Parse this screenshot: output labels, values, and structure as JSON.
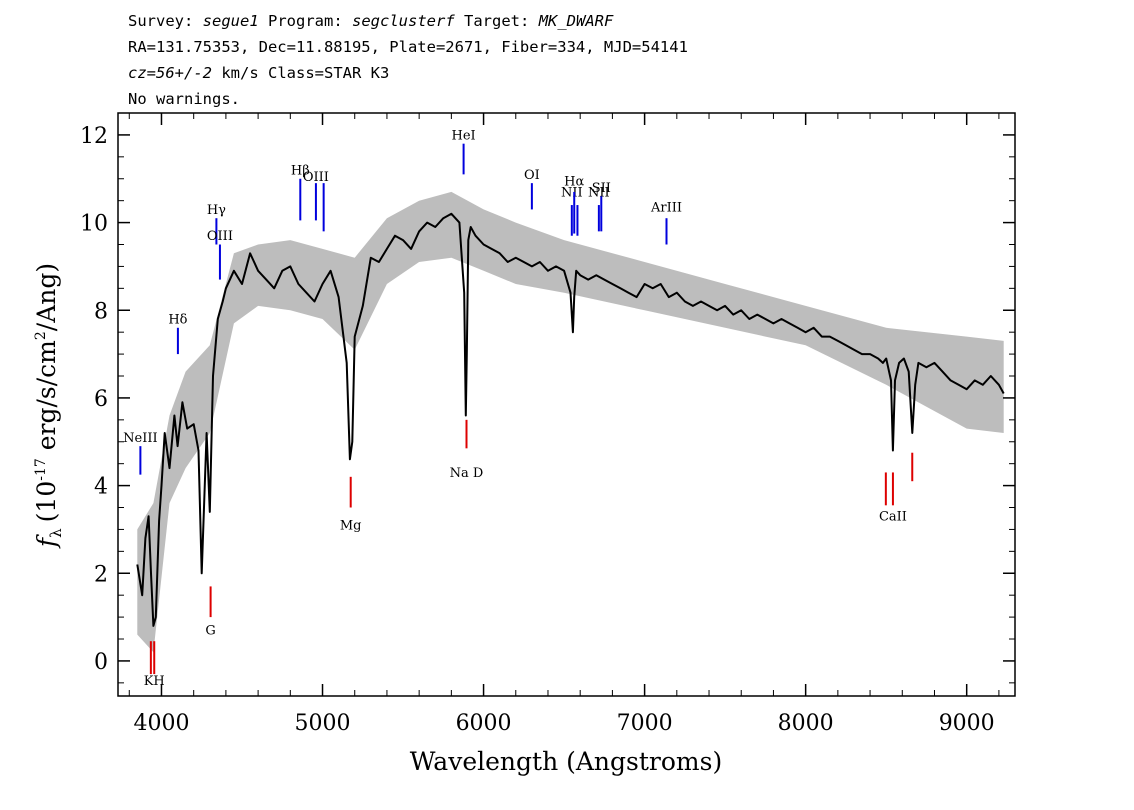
{
  "header": {
    "survey_label": "Survey:",
    "survey": "segue1",
    "program_label": "Program:",
    "program": "segclusterf",
    "target_label": "Target:",
    "target": "MK_DWARF",
    "line2": "RA=131.75353, Dec=11.88195, Plate=2671, Fiber=334, MJD=54141",
    "cz": "cz=56+/-2",
    "cz_unit": "km/s",
    "class_text": "Class=STAR K3",
    "warnings": "No warnings."
  },
  "colors": {
    "spectrum": "#000000",
    "noise": "#bdbdbd",
    "emission": "#0000dd",
    "absorption": "#dd0000",
    "sky": "#000000"
  },
  "chart_data": {
    "type": "line",
    "title": "",
    "xlabel": "Wavelength (Angstroms)",
    "ylabel": "f_λ (10^-17 erg/s/cm^2/Ang)",
    "ylabel_parts": {
      "f": "f",
      "sub": "λ",
      "pre": "(10",
      "exp1": "-17",
      "mid": " erg/s/cm",
      "exp2": "2",
      "post": "/Ang)"
    },
    "xlim": [
      3730,
      9300
    ],
    "ylim": [
      -0.8,
      12.5
    ],
    "xticks": [
      4000,
      5000,
      6000,
      7000,
      8000,
      9000
    ],
    "xtick_labels": [
      "4000",
      "5000",
      "6000",
      "7000",
      "8000",
      "9000"
    ],
    "yticks": [
      0,
      2,
      4,
      6,
      8,
      10,
      12
    ],
    "ytick_labels": [
      "0",
      "2",
      "4",
      "6",
      "8",
      "10",
      "12"
    ],
    "grid": false,
    "series": [
      {
        "role": "flux",
        "x": [
          3850,
          3880,
          3900,
          3920,
          3935,
          3950,
          3965,
          3985,
          4000,
          4020,
          4050,
          4080,
          4100,
          4130,
          4160,
          4200,
          4230,
          4250,
          4280,
          4300,
          4320,
          4350,
          4380,
          4400,
          4450,
          4500,
          4550,
          4600,
          4650,
          4700,
          4750,
          4800,
          4850,
          4900,
          4950,
          5000,
          5050,
          5100,
          5150,
          5170,
          5185,
          5200,
          5250,
          5300,
          5350,
          5400,
          5450,
          5500,
          5550,
          5600,
          5650,
          5700,
          5750,
          5800,
          5850,
          5880,
          5890,
          5896,
          5905,
          5920,
          5950,
          6000,
          6050,
          6100,
          6150,
          6200,
          6250,
          6300,
          6350,
          6400,
          6450,
          6500,
          6540,
          6555,
          6563,
          6575,
          6600,
          6650,
          6700,
          6750,
          6800,
          6850,
          6900,
          6950,
          7000,
          7050,
          7100,
          7150,
          7200,
          7250,
          7300,
          7350,
          7400,
          7450,
          7500,
          7550,
          7600,
          7650,
          7700,
          7750,
          7800,
          7850,
          7900,
          7950,
          8000,
          8050,
          8100,
          8150,
          8200,
          8250,
          8300,
          8350,
          8400,
          8450,
          8480,
          8500,
          8530,
          8542,
          8555,
          8580,
          8610,
          8640,
          8662,
          8680,
          8700,
          8750,
          8800,
          8850,
          8900,
          8950,
          9000,
          9050,
          9100,
          9150,
          9200,
          9230
        ],
        "y": [
          2.2,
          1.5,
          2.8,
          3.3,
          2.0,
          0.8,
          1.0,
          3.2,
          4.0,
          5.2,
          4.4,
          5.6,
          4.9,
          5.9,
          5.3,
          5.4,
          4.8,
          2.0,
          5.2,
          3.4,
          6.5,
          7.8,
          8.2,
          8.5,
          8.9,
          8.6,
          9.3,
          8.9,
          8.7,
          8.5,
          8.9,
          9.0,
          8.6,
          8.4,
          8.2,
          8.6,
          8.9,
          8.3,
          6.8,
          4.6,
          5.0,
          7.4,
          8.1,
          9.2,
          9.1,
          9.4,
          9.7,
          9.6,
          9.4,
          9.8,
          10.0,
          9.9,
          10.1,
          10.2,
          10.0,
          8.4,
          5.6,
          7.0,
          9.6,
          9.9,
          9.7,
          9.5,
          9.4,
          9.3,
          9.1,
          9.2,
          9.1,
          9.0,
          9.1,
          8.9,
          9.0,
          8.9,
          8.4,
          7.5,
          8.3,
          8.9,
          8.8,
          8.7,
          8.8,
          8.7,
          8.6,
          8.5,
          8.4,
          8.3,
          8.6,
          8.5,
          8.6,
          8.3,
          8.4,
          8.2,
          8.1,
          8.2,
          8.1,
          8.0,
          8.1,
          7.9,
          8.0,
          7.8,
          7.9,
          7.8,
          7.7,
          7.8,
          7.7,
          7.6,
          7.5,
          7.6,
          7.4,
          7.4,
          7.3,
          7.2,
          7.1,
          7.0,
          7.0,
          6.9,
          6.8,
          6.9,
          6.4,
          4.8,
          6.4,
          6.8,
          6.9,
          6.6,
          5.2,
          6.3,
          6.8,
          6.7,
          6.8,
          6.6,
          6.4,
          6.3,
          6.2,
          6.4,
          6.3,
          6.5,
          6.3,
          6.1
        ]
      },
      {
        "role": "noise_upper",
        "x": [
          3850,
          3950,
          4050,
          4150,
          4300,
          4450,
          4600,
          4800,
          5000,
          5200,
          5400,
          5600,
          5800,
          6000,
          6200,
          6500,
          7000,
          7500,
          8000,
          8500,
          9000,
          9230
        ],
        "y": [
          3.0,
          3.6,
          5.6,
          6.6,
          7.2,
          9.3,
          9.5,
          9.6,
          9.4,
          9.2,
          10.1,
          10.5,
          10.7,
          10.3,
          10.0,
          9.6,
          9.1,
          8.6,
          8.1,
          7.6,
          7.4,
          7.3
        ]
      },
      {
        "role": "noise_lower",
        "x": [
          3850,
          3950,
          4050,
          4150,
          4300,
          4450,
          4600,
          4800,
          5000,
          5200,
          5400,
          5600,
          5800,
          6000,
          6200,
          6500,
          7000,
          7500,
          8000,
          8500,
          9000,
          9230
        ],
        "y": [
          0.6,
          0.2,
          3.6,
          4.4,
          5.2,
          7.7,
          8.1,
          8.0,
          7.8,
          7.1,
          8.6,
          9.1,
          9.2,
          8.9,
          8.6,
          8.4,
          8.0,
          7.6,
          7.2,
          6.3,
          5.3,
          5.2
        ]
      }
    ],
    "line_markers": [
      {
        "name": "NeIII",
        "wave": 3869,
        "type": "emission",
        "y1": 4.25,
        "y2": 4.9,
        "label_y": 5.0
      },
      {
        "name": "Hδ",
        "wave": 4102,
        "type": "emission",
        "y1": 7.0,
        "y2": 7.6,
        "label_y": 7.7
      },
      {
        "name": "Hγ",
        "wave": 4341,
        "type": "emission",
        "y1": 9.5,
        "y2": 10.1,
        "label_y": 10.2
      },
      {
        "name": "OIII",
        "wave": 4363,
        "type": "emission",
        "y1": 8.7,
        "y2": 9.5,
        "label_y": 9.6
      },
      {
        "name": "Hβ",
        "wave": 4862,
        "type": "emission",
        "y1": 10.05,
        "y2": 11.0,
        "label_y": 11.1
      },
      {
        "name": "OIII",
        "wave": 4959,
        "type": "emission",
        "y1": 10.05,
        "y2": 10.9,
        "label_y": 10.95
      },
      {
        "name": "",
        "wave": 5007,
        "type": "emission",
        "y1": 9.8,
        "y2": 10.9,
        "label_y": 0
      },
      {
        "name": "HeI",
        "wave": 5876,
        "type": "emission",
        "y1": 11.1,
        "y2": 11.8,
        "label_y": 11.9
      },
      {
        "name": "OI",
        "wave": 6300,
        "type": "emission",
        "y1": 10.3,
        "y2": 10.9,
        "label_y": 11.0
      },
      {
        "name": "NII",
        "wave": 6548,
        "type": "emission",
        "y1": 9.7,
        "y2": 10.4,
        "label_y": 10.6
      },
      {
        "name": "Hα",
        "wave": 6563,
        "type": "emission",
        "y1": 9.75,
        "y2": 10.7,
        "label_y": 10.85
      },
      {
        "name": "",
        "wave": 6583,
        "type": "emission",
        "y1": 9.7,
        "y2": 10.4,
        "label_y": 0
      },
      {
        "name": "NII",
        "wave": 6716,
        "type": "emission",
        "y1": 9.8,
        "y2": 10.4,
        "label_y": 10.6
      },
      {
        "name": "SII",
        "wave": 6731,
        "type": "emission",
        "y1": 9.8,
        "y2": 10.6,
        "label_y": 10.7
      },
      {
        "name": "ArIII",
        "wave": 7136,
        "type": "emission",
        "y1": 9.5,
        "y2": 10.1,
        "label_y": 10.25
      },
      {
        "name": "",
        "wave": 3934,
        "type": "absorption",
        "y1": -0.3,
        "y2": 0.45,
        "label_y": 0
      },
      {
        "name": "KH",
        "wave": 3955,
        "type": "absorption",
        "y1": -0.3,
        "y2": 0.45,
        "label_y": -0.55
      },
      {
        "name": "G",
        "wave": 4305,
        "type": "absorption",
        "y1": 1.0,
        "y2": 1.7,
        "label_y": 0.6
      },
      {
        "name": "Mg",
        "wave": 5175,
        "type": "absorption",
        "y1": 3.5,
        "y2": 4.2,
        "label_y": 3.0
      },
      {
        "name": "Na D",
        "wave": 5894,
        "type": "absorption",
        "y1": 4.85,
        "y2": 5.5,
        "label_y": 4.2
      },
      {
        "name": "",
        "wave": 8498,
        "type": "absorption",
        "y1": 3.55,
        "y2": 4.3,
        "label_y": 0
      },
      {
        "name": "CaII",
        "wave": 8542,
        "type": "absorption",
        "y1": 3.55,
        "y2": 4.3,
        "label_y": 3.2
      },
      {
        "name": "",
        "wave": 8662,
        "type": "absorption",
        "y1": 4.1,
        "y2": 4.75,
        "label_y": 0
      }
    ]
  }
}
